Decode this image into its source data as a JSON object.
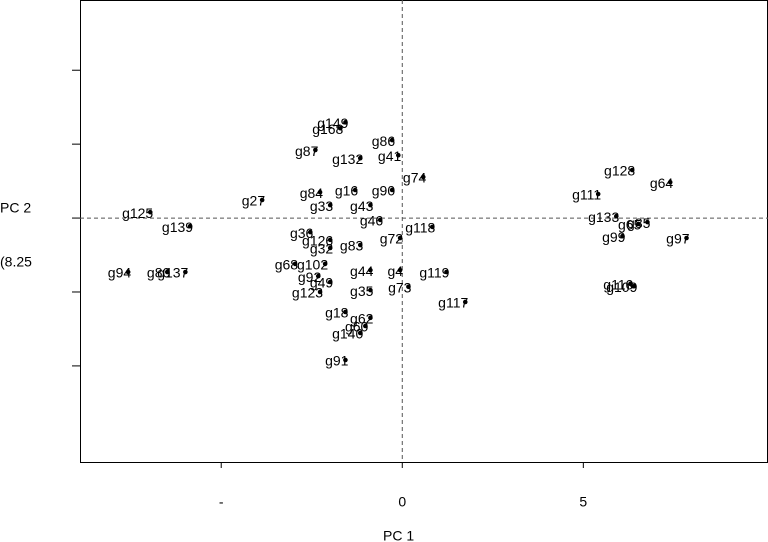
{
  "chart_data": {
    "type": "scatter",
    "x_label": "PC 1",
    "y_label": "PC 2",
    "y_label_note": "(8.25",
    "labels": [
      "g125",
      "g139",
      "g94",
      "g80",
      "g137",
      "g27",
      "g87",
      "g149",
      "g168",
      "g86",
      "g132",
      "g41",
      "g74",
      "g84",
      "g16",
      "g33",
      "g43",
      "g90",
      "g36",
      "g126",
      "g32",
      "g83",
      "g46",
      "g72",
      "g118",
      "g68",
      "g102",
      "g92",
      "g44",
      "g4",
      "g49",
      "g123",
      "g35",
      "g119",
      "g73",
      "g117",
      "g18",
      "g62",
      "g60",
      "g140",
      "g91",
      "g128",
      "g64",
      "g111",
      "g133",
      "g65",
      "g85",
      "g99",
      "g97",
      "g110",
      "g109"
    ],
    "x": [
      -6.96,
      -5.86,
      -7.57,
      -6.49,
      -5.99,
      -3.87,
      -2.4,
      -1.57,
      -1.71,
      -0.28,
      -1.16,
      -0.11,
      0.58,
      -2.27,
      -1.3,
      -1.99,
      -0.88,
      -0.28,
      -2.54,
      -1.99,
      -1.99,
      -1.16,
      -0.61,
      -0.06,
      0.83,
      -2.96,
      -2.13,
      -2.32,
      -0.88,
      -0.06,
      -1.99,
      -2.27,
      -0.88,
      1.22,
      0.17,
      1.74,
      -1.57,
      -0.88,
      -1.02,
      -1.16,
      -1.57,
      6.35,
      7.4,
      5.41,
      5.91,
      6.52,
      6.77,
      6.08,
      7.85,
      6.3,
      6.41
    ],
    "values": [
      0.16,
      -0.22,
      -1.46,
      -1.46,
      -1.46,
      0.49,
      1.84,
      2.59,
      2.43,
      2.11,
      1.62,
      1.7,
      1.11,
      0.7,
      0.76,
      0.35,
      0.35,
      0.76,
      -0.38,
      -0.59,
      -0.81,
      -0.73,
      -0.05,
      -0.54,
      -0.24,
      -1.24,
      -1.24,
      -1.57,
      -1.41,
      -1.41,
      -1.73,
      -2.0,
      -1.95,
      -1.46,
      -1.86,
      -2.27,
      -2.54,
      -2.7,
      -2.92,
      -3.11,
      -3.84,
      1.3,
      0.97,
      0.65,
      0.05,
      -0.16,
      -0.11,
      -0.49,
      -0.54,
      -1.78,
      -1.84
    ],
    "color": "#000000",
    "xlim": [
      -8.9,
      10.1
    ],
    "ylim": [
      -6.6,
      5.9
    ],
    "xticks": [
      {
        "value": -5,
        "label": "-"
      },
      0,
      5
    ],
    "yticks": [
      -4,
      -2,
      0,
      2,
      4,
      6
    ],
    "zero_lines": true
  }
}
